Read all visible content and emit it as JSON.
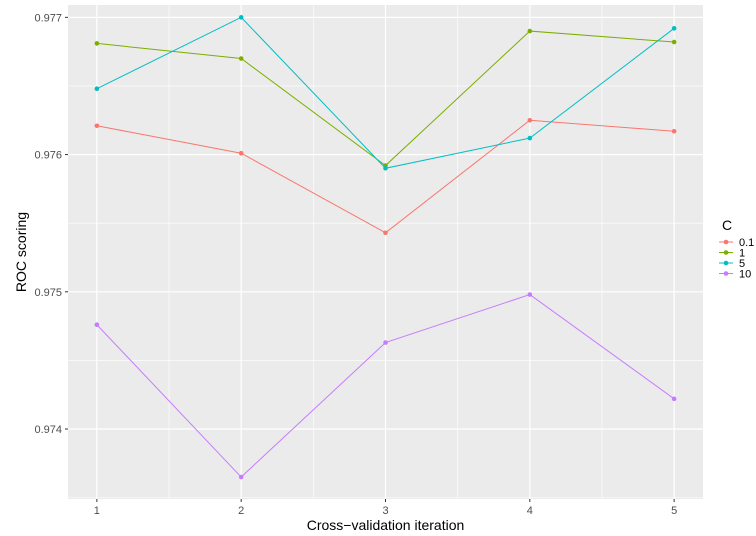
{
  "chart_data": {
    "type": "line",
    "title": "",
    "xlabel": "Cross−validation iteration",
    "ylabel": "ROC scoring",
    "x": [
      1,
      2,
      3,
      4,
      5
    ],
    "x_tick_labels": [
      "1",
      "2",
      "3",
      "4",
      "5"
    ],
    "y_ticks": [
      0.974,
      0.975,
      0.976,
      0.977
    ],
    "y_tick_labels": [
      "0.974",
      "0.975",
      "0.976",
      "0.977"
    ],
    "xlim": [
      0.8,
      5.2
    ],
    "ylim": [
      0.97349,
      0.97709
    ],
    "grid": true,
    "legend_title": "C",
    "legend_position": "right",
    "series": [
      {
        "name": "0.1",
        "color": "#F8766D",
        "values": [
          0.97621,
          0.97601,
          0.97543,
          0.97625,
          0.97617
        ]
      },
      {
        "name": "1",
        "color": "#7CAE00",
        "values": [
          0.97681,
          0.9767,
          0.97592,
          0.9769,
          0.97682
        ]
      },
      {
        "name": "5",
        "color": "#00BFC4",
        "values": [
          0.97648,
          0.977,
          0.9759,
          0.97612,
          0.97692
        ]
      },
      {
        "name": "10",
        "color": "#C77CFF",
        "values": [
          0.97476,
          0.97365,
          0.97463,
          0.97498,
          0.97422
        ]
      }
    ]
  }
}
